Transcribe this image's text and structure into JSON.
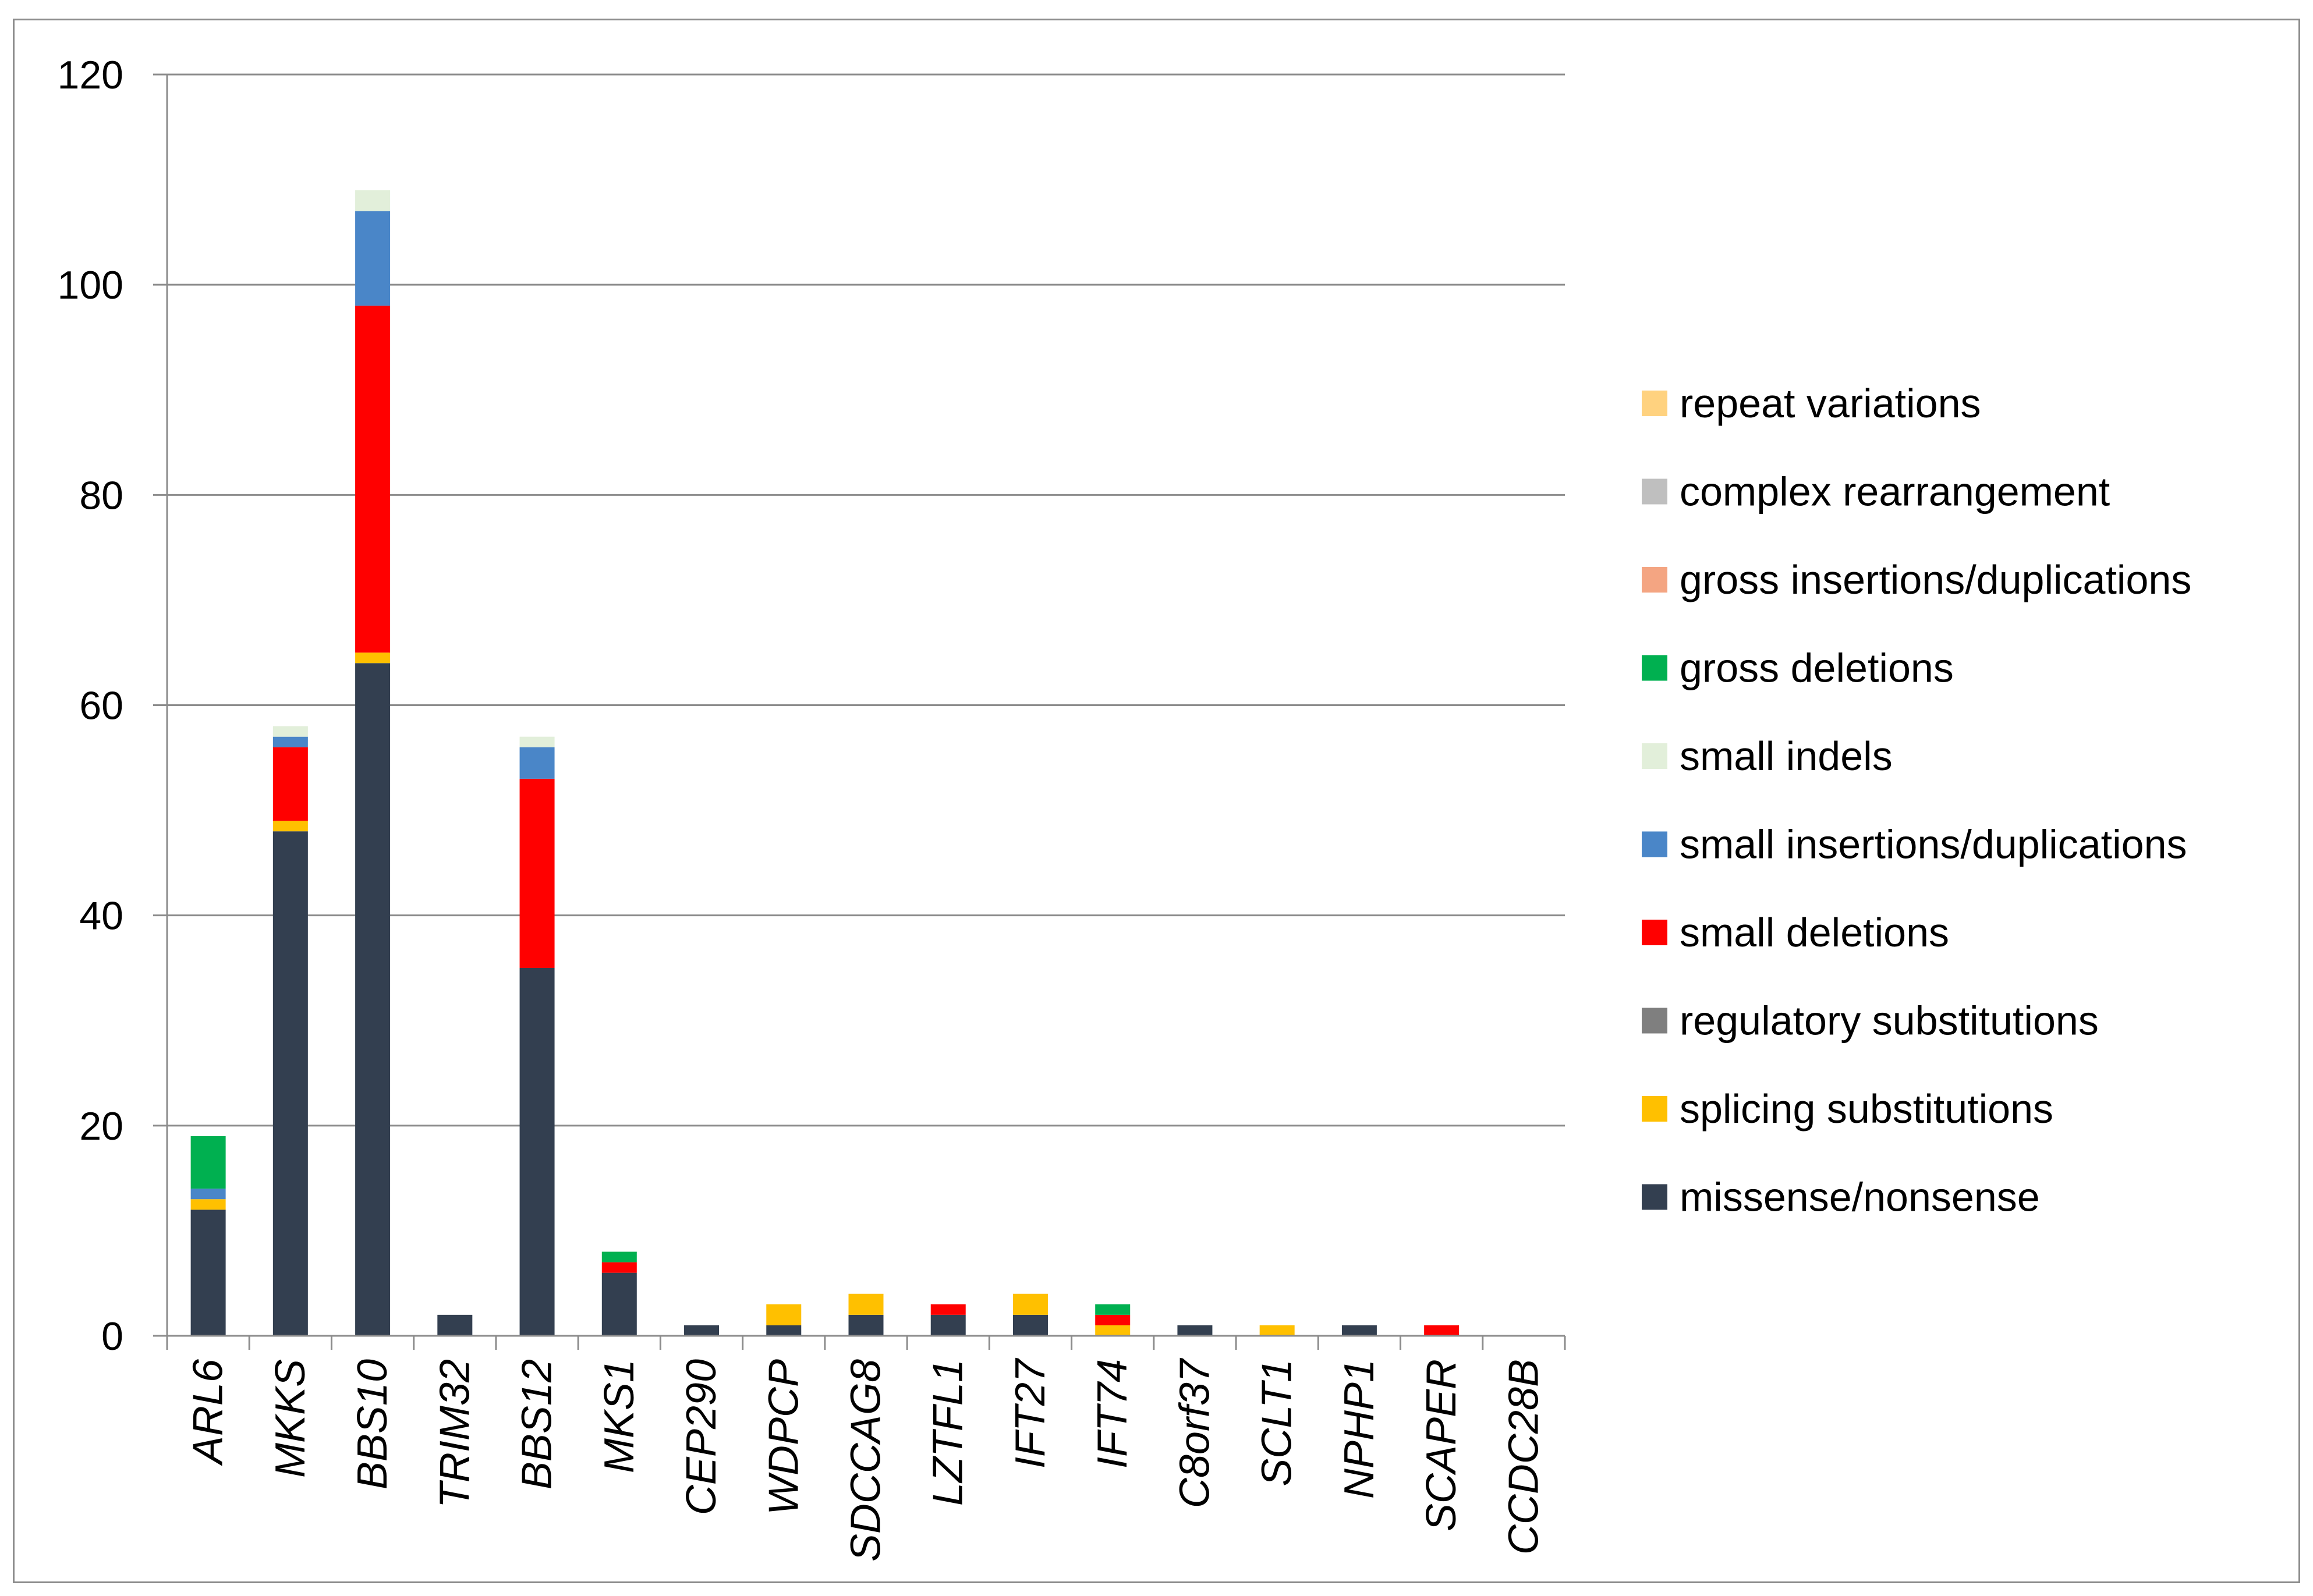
{
  "chart_data": {
    "type": "bar",
    "stacked": true,
    "title": "",
    "xlabel": "",
    "ylabel": "",
    "ylim": [
      0,
      120
    ],
    "yticks": [
      0,
      20,
      40,
      60,
      80,
      100,
      120
    ],
    "grid": true,
    "legend_position": "right",
    "categories": [
      "ARL6",
      "MKKS",
      "BBS10",
      "TRIM32",
      "BBS12",
      "MKS1",
      "CEP290",
      "WDPCP",
      "SDCCAG8",
      "LZTFL1",
      "IFT27",
      "IFT74",
      "C8orf37",
      "SCLT1",
      "NPHP1",
      "SCAPER",
      "CCDC28B"
    ],
    "series": [
      {
        "name": "missense/nonsense",
        "color": "#333f50",
        "values": [
          12,
          48,
          64,
          2,
          35,
          6,
          1,
          1,
          2,
          2,
          2,
          0,
          1,
          0,
          1,
          0,
          0
        ]
      },
      {
        "name": "splicing substitutions",
        "color": "#ffc000",
        "values": [
          1,
          1,
          1,
          0,
          0,
          0,
          0,
          2,
          2,
          0,
          2,
          1,
          0,
          1,
          0,
          0,
          0
        ]
      },
      {
        "name": "regulatory substitutions",
        "color": "#7f7f7f",
        "values": [
          0,
          0,
          0,
          0,
          0,
          0,
          0,
          0,
          0,
          0,
          0,
          0,
          0,
          0,
          0,
          0,
          0
        ]
      },
      {
        "name": "small deletions",
        "color": "#ff0000",
        "values": [
          0,
          7,
          33,
          0,
          18,
          1,
          0,
          0,
          0,
          1,
          0,
          1,
          0,
          0,
          0,
          1,
          0
        ]
      },
      {
        "name": "small insertions/duplications",
        "color": "#4a86c8",
        "values": [
          1,
          1,
          9,
          0,
          3,
          0,
          0,
          0,
          0,
          0,
          0,
          0,
          0,
          0,
          0,
          0,
          0
        ]
      },
      {
        "name": "small indels",
        "color": "#e2efda",
        "values": [
          0,
          1,
          2,
          0,
          1,
          0,
          0,
          0,
          0,
          0,
          0,
          0,
          0,
          0,
          0,
          0,
          0
        ]
      },
      {
        "name": "gross deletions",
        "color": "#00b050",
        "values": [
          5,
          0,
          0,
          0,
          0,
          1,
          0,
          0,
          0,
          0,
          0,
          1,
          0,
          0,
          0,
          0,
          0
        ]
      },
      {
        "name": "gross insertions/duplications",
        "color": "#f4a582",
        "values": [
          0,
          0,
          0,
          0,
          0,
          0,
          0,
          0,
          0,
          0,
          0,
          0,
          0,
          0,
          0,
          0,
          0
        ]
      },
      {
        "name": "complex rearrangement",
        "color": "#bfbfbf",
        "values": [
          0,
          0,
          0,
          0,
          0,
          0,
          0,
          0,
          0,
          0,
          0,
          0,
          0,
          0,
          0,
          0,
          0
        ]
      },
      {
        "name": "repeat variations",
        "color": "#ffd27f",
        "values": [
          0,
          0,
          0,
          0,
          0,
          0,
          0,
          0,
          0,
          0,
          0,
          0,
          0,
          0,
          0,
          0,
          0
        ]
      }
    ],
    "legend_order": [
      "repeat variations",
      "complex rearrangement",
      "gross insertions/duplications",
      "gross deletions",
      "small indels",
      "small insertions/duplications",
      "small deletions",
      "regulatory substitutions",
      "splicing substitutions",
      "missense/nonsense"
    ]
  }
}
